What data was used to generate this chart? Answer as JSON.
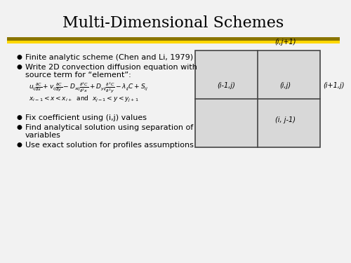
{
  "title": "Multi-Dimensional Schemes",
  "title_fontsize": 16,
  "title_font": "serif",
  "background_color": "#f2f2f2",
  "bar1_color": "#8B7500",
  "bar2_color": "#FFD700",
  "bar3_color": "#f2f2f2",
  "grid_bg": "#d8d8d8",
  "grid_line_color": "#444444",
  "grid_labels": {
    "top_center": "(i,j+1)",
    "mid_left": "(i-1,j)",
    "mid_center": "(i,j)",
    "mid_right": "(i+1,j)",
    "bot_center": "(i, j-1)"
  },
  "bullet_char": "●",
  "b1": "Finite analytic scheme (Chen and Li, 1979)",
  "b2a": "Write 2D convection diffusion equation with",
  "b2b": "source term for “element”:",
  "b3": "Fix coefficient using (i,j) values",
  "b4a": "Find analytical solution using separation of",
  "b4b": "variables",
  "b5": "Use exact solution for profiles assumptions",
  "text_color": "#000000",
  "bullet_fontsize": 8.0,
  "label_fontsize": 7.0
}
